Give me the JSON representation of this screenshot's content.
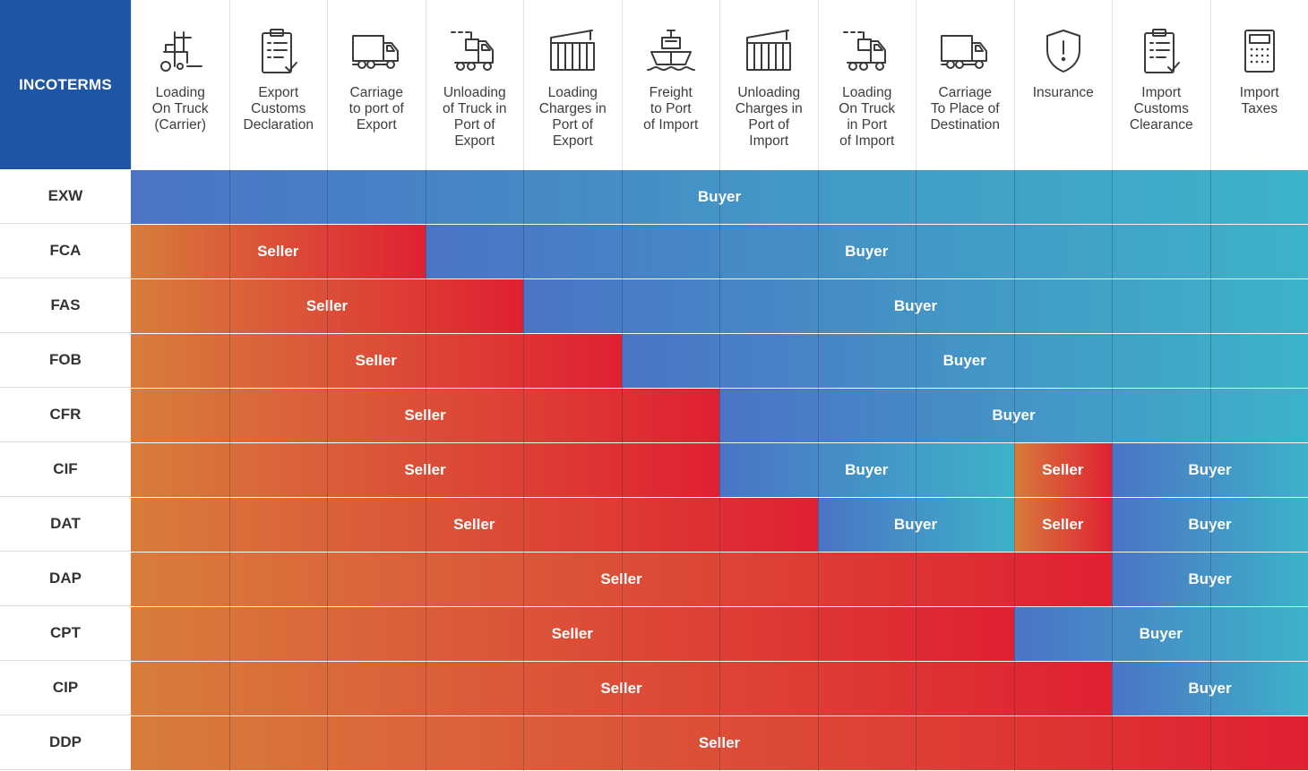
{
  "corner_label": "INCOTERMS",
  "columns": [
    {
      "label": "Loading\nOn Truck\n(Carrier)",
      "icon": "forklift-icon"
    },
    {
      "label": "Export\nCustoms\nDeclaration",
      "icon": "clipboard-check-icon"
    },
    {
      "label": "Carriage\nto port of\nExport",
      "icon": "truck-icon"
    },
    {
      "label": "Unloading\nof Truck in\nPort of\nExport",
      "icon": "truck-unload-icon"
    },
    {
      "label": "Loading\nCharges in\nPort of\nExport",
      "icon": "container-crane-icon"
    },
    {
      "label": "Freight\nto Port\nof Import",
      "icon": "ship-icon"
    },
    {
      "label": "Unloading\nCharges in\nPort of\nImport",
      "icon": "container-crane-icon"
    },
    {
      "label": "Loading\nOn Truck\nin Port\nof Import",
      "icon": "truck-unload-icon"
    },
    {
      "label": "Carriage\nTo Place of\nDestination",
      "icon": "truck-icon"
    },
    {
      "label": "Insurance",
      "icon": "shield-alert-icon"
    },
    {
      "label": "Import\nCustoms\nClearance",
      "icon": "clipboard-check-icon"
    },
    {
      "label": "Import\nTaxes",
      "icon": "calculator-icon"
    }
  ],
  "rows": [
    {
      "term": "EXW",
      "segments": [
        {
          "party": "Buyer",
          "label": "Buyer",
          "from": 0,
          "to": 12
        }
      ]
    },
    {
      "term": "FCA",
      "segments": [
        {
          "party": "Seller",
          "label": "Seller",
          "from": 0,
          "to": 3
        },
        {
          "party": "Buyer",
          "label": "Buyer",
          "from": 3,
          "to": 12
        }
      ]
    },
    {
      "term": "FAS",
      "segments": [
        {
          "party": "Seller",
          "label": "Seller",
          "from": 0,
          "to": 4
        },
        {
          "party": "Buyer",
          "label": "Buyer",
          "from": 4,
          "to": 12
        }
      ]
    },
    {
      "term": "FOB",
      "segments": [
        {
          "party": "Seller",
          "label": "Seller",
          "from": 0,
          "to": 5
        },
        {
          "party": "Buyer",
          "label": "Buyer",
          "from": 5,
          "to": 12
        }
      ]
    },
    {
      "term": "CFR",
      "segments": [
        {
          "party": "Seller",
          "label": "Seller",
          "from": 0,
          "to": 6
        },
        {
          "party": "Buyer",
          "label": "Buyer",
          "from": 6,
          "to": 12
        }
      ]
    },
    {
      "term": "CIF",
      "segments": [
        {
          "party": "Seller",
          "label": "Seller",
          "from": 0,
          "to": 6
        },
        {
          "party": "Buyer",
          "label": "Buyer",
          "from": 6,
          "to": 9
        },
        {
          "party": "Seller",
          "label": "Seller",
          "from": 9,
          "to": 10
        },
        {
          "party": "Buyer",
          "label": "Buyer",
          "from": 10,
          "to": 12
        }
      ]
    },
    {
      "term": "DAT",
      "segments": [
        {
          "party": "Seller",
          "label": "Seller",
          "from": 0,
          "to": 7
        },
        {
          "party": "Buyer",
          "label": "Buyer",
          "from": 7,
          "to": 9
        },
        {
          "party": "Seller",
          "label": "Seller",
          "from": 9,
          "to": 10
        },
        {
          "party": "Buyer",
          "label": "Buyer",
          "from": 10,
          "to": 12
        }
      ]
    },
    {
      "term": "DAP",
      "segments": [
        {
          "party": "Seller",
          "label": "Seller",
          "from": 0,
          "to": 10
        },
        {
          "party": "Buyer",
          "label": "Buyer",
          "from": 10,
          "to": 12
        }
      ]
    },
    {
      "term": "CPT",
      "segments": [
        {
          "party": "Seller",
          "label": "Seller",
          "from": 0,
          "to": 9
        },
        {
          "party": "Buyer",
          "label": "Buyer",
          "from": 9,
          "to": 12
        }
      ]
    },
    {
      "term": "CIP",
      "segments": [
        {
          "party": "Seller",
          "label": "Seller",
          "from": 0,
          "to": 10
        },
        {
          "party": "Buyer",
          "label": "Buyer",
          "from": 10,
          "to": 12
        }
      ]
    },
    {
      "term": "DDP",
      "segments": [
        {
          "party": "Seller",
          "label": "Seller",
          "from": 0,
          "to": 12
        }
      ]
    }
  ],
  "colors": {
    "header_blue": "#1f55a5",
    "seller_start": "#d87c3c",
    "seller_end": "#e02032",
    "buyer_start": "#4b74c5",
    "buyer_end": "#3cb3c8"
  }
}
